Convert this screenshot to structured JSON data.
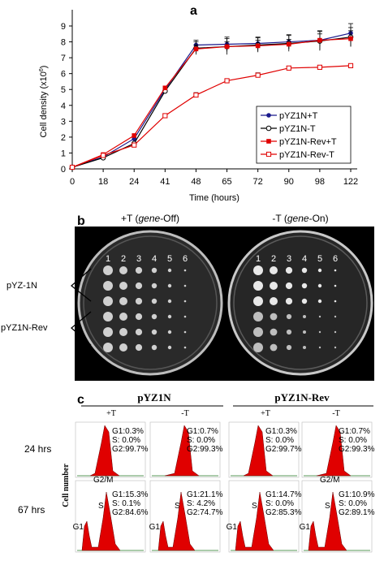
{
  "panel_a": {
    "label": "a",
    "chart_data": {
      "type": "line",
      "x_categories": [
        "0",
        "18",
        "24",
        "41",
        "48",
        "65",
        "72",
        "90",
        "98",
        "122"
      ],
      "xlabel": "Time (hours)",
      "ylabel": "Cell density (x10",
      "ylabel_sup": "6",
      "ylabel_close": ")",
      "ylim": [
        0,
        9
      ],
      "yticks": [
        0,
        1,
        2,
        3,
        4,
        5,
        6,
        7,
        8,
        9
      ],
      "legend_position": "lower-right",
      "series": [
        {
          "name": "pYZ1N+T",
          "color": "#1a1a8c",
          "marker": "filled-circle",
          "values": [
            0.1,
            0.75,
            1.9,
            5.0,
            7.8,
            7.85,
            7.9,
            8.0,
            8.1,
            8.55
          ],
          "err": [
            0,
            0,
            0,
            0,
            0.3,
            0.45,
            0.4,
            0.45,
            0.6,
            0.6
          ]
        },
        {
          "name": "pYZ1N-T",
          "color": "#000000",
          "marker": "open-circle",
          "values": [
            0.1,
            0.7,
            1.6,
            4.9,
            7.6,
            7.7,
            7.8,
            7.9,
            8.05,
            8.3
          ],
          "err": [
            0,
            0,
            0,
            0,
            0.4,
            0.5,
            0.45,
            0.5,
            0.6,
            0.6
          ]
        },
        {
          "name": "pYZ1N-Rev+T",
          "color": "#e00000",
          "marker": "filled-square",
          "values": [
            0.1,
            0.9,
            2.1,
            5.1,
            7.55,
            7.7,
            7.75,
            7.85,
            8.1,
            8.2
          ],
          "err": [
            0,
            0,
            0,
            0,
            0.25,
            0.3,
            0.35,
            0.3,
            0.4,
            0.5
          ]
        },
        {
          "name": "pYZ1N-Rev-T",
          "color": "#e00000",
          "marker": "open-square",
          "values": [
            0.1,
            0.85,
            1.5,
            3.35,
            4.65,
            5.55,
            5.9,
            6.35,
            6.4,
            6.5
          ],
          "err": [
            0,
            0,
            0,
            0,
            0.15,
            0.1,
            0.15,
            0.1,
            0.1,
            0.1
          ]
        }
      ]
    }
  },
  "panel_b": {
    "label": "b",
    "title_left_pre": "+T (",
    "title_left_em": "gene",
    "title_left_post": "-Off)",
    "title_right_pre": "-T (",
    "title_right_em": "gene",
    "title_right_post": "-On)",
    "column_numbers": [
      "1",
      "2",
      "3",
      "4",
      "5",
      "6"
    ],
    "row_labels": [
      "pYZ-1N",
      "pYZ1N-Rev"
    ]
  },
  "panel_c": {
    "label": "c",
    "group1": "pYZ1N",
    "group2": "pYZ1N-Rev",
    "conditions": [
      "+T",
      "-T",
      "+T",
      "-T"
    ],
    "row_labels": [
      "24 hrs",
      "67 hrs"
    ],
    "ylabel": "Cell number",
    "phase_labels": {
      "g1": "G1",
      "s": "S",
      "g2m": "G2/M"
    },
    "histograms_24": [
      {
        "lines": [
          "G1:0.3%",
          "S: 0.0%",
          "G2:99.7%"
        ]
      },
      {
        "lines": [
          "G1:0.7%",
          "S: 0.0%",
          "G2:99.3%"
        ]
      },
      {
        "lines": [
          "G1:0.3%",
          "S: 0.0%",
          "G2:99.7%"
        ]
      },
      {
        "lines": [
          "G1:0.7%",
          "S: 0.0%",
          "G2:99.3%"
        ]
      }
    ],
    "histograms_67": [
      {
        "lines": [
          "G1:15.3%",
          "S: 0.1%",
          "G2:84.6%"
        ]
      },
      {
        "lines": [
          "G1:21.1%",
          "S: 4.2%",
          "G2:74.7%"
        ]
      },
      {
        "lines": [
          "G1:14.7%",
          "S: 0.0%",
          "G2:85.3%"
        ]
      },
      {
        "lines": [
          "G1:10.9%",
          "S: 0.0%",
          "G2:89.1%"
        ]
      }
    ]
  }
}
